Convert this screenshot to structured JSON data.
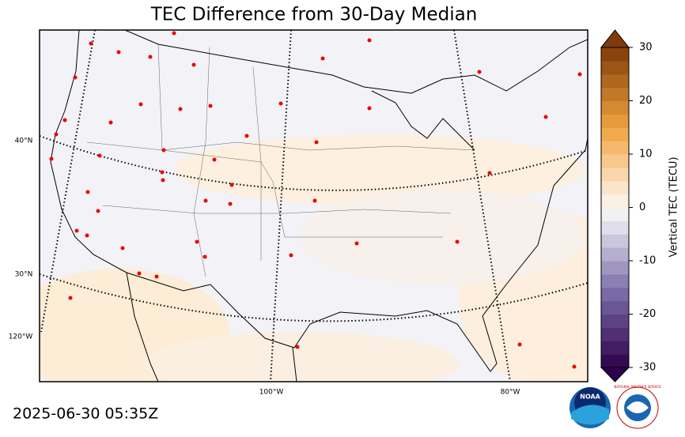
{
  "title": "TEC Difference from 30-Day Median",
  "timestamp": "2025-06-30 05:35Z",
  "map": {
    "lat_labels": [
      "40°N",
      "30°N"
    ],
    "lon_labels": [
      "120°W",
      "100°W",
      "80°W"
    ]
  },
  "colorbar": {
    "label": "Vertical TEC (TECU)",
    "lim": [
      -30,
      30
    ],
    "ticks": [
      -30,
      -20,
      -10,
      0,
      10,
      20,
      30
    ],
    "extend": "both"
  },
  "logos": [
    "NOAA",
    "NATIONAL WEATHER SERVICE"
  ]
}
